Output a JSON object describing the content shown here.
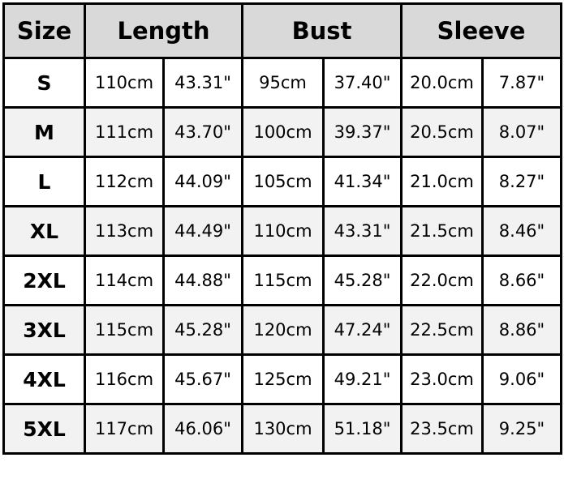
{
  "headers": {
    "size": "Size",
    "length": "Length",
    "bust": "Bust",
    "sleeve": "Sleeve"
  },
  "colors": {
    "header_bg": "#d9d9d9",
    "alt_row_bg": "#f2f2f2",
    "border": "#000000"
  },
  "rows": [
    {
      "size": "S",
      "length_cm": "110cm",
      "length_in": "43.31\"",
      "bust_cm": "95cm",
      "bust_in": "37.40\"",
      "sleeve_cm": "20.0cm",
      "sleeve_in": "7.87\""
    },
    {
      "size": "M",
      "length_cm": "111cm",
      "length_in": "43.70\"",
      "bust_cm": "100cm",
      "bust_in": "39.37\"",
      "sleeve_cm": "20.5cm",
      "sleeve_in": "8.07\""
    },
    {
      "size": "L",
      "length_cm": "112cm",
      "length_in": "44.09\"",
      "bust_cm": "105cm",
      "bust_in": "41.34\"",
      "sleeve_cm": "21.0cm",
      "sleeve_in": "8.27\""
    },
    {
      "size": "XL",
      "length_cm": "113cm",
      "length_in": "44.49\"",
      "bust_cm": "110cm",
      "bust_in": "43.31\"",
      "sleeve_cm": "21.5cm",
      "sleeve_in": "8.46\""
    },
    {
      "size": "2XL",
      "length_cm": "114cm",
      "length_in": "44.88\"",
      "bust_cm": "115cm",
      "bust_in": "45.28\"",
      "sleeve_cm": "22.0cm",
      "sleeve_in": "8.66\""
    },
    {
      "size": "3XL",
      "length_cm": "115cm",
      "length_in": "45.28\"",
      "bust_cm": "120cm",
      "bust_in": "47.24\"",
      "sleeve_cm": "22.5cm",
      "sleeve_in": "8.86\""
    },
    {
      "size": "4XL",
      "length_cm": "116cm",
      "length_in": "45.67\"",
      "bust_cm": "125cm",
      "bust_in": "49.21\"",
      "sleeve_cm": "23.0cm",
      "sleeve_in": "9.06\""
    },
    {
      "size": "5XL",
      "length_cm": "117cm",
      "length_in": "46.06\"",
      "bust_cm": "130cm",
      "bust_in": "51.18\"",
      "sleeve_cm": "23.5cm",
      "sleeve_in": "9.25\""
    }
  ]
}
